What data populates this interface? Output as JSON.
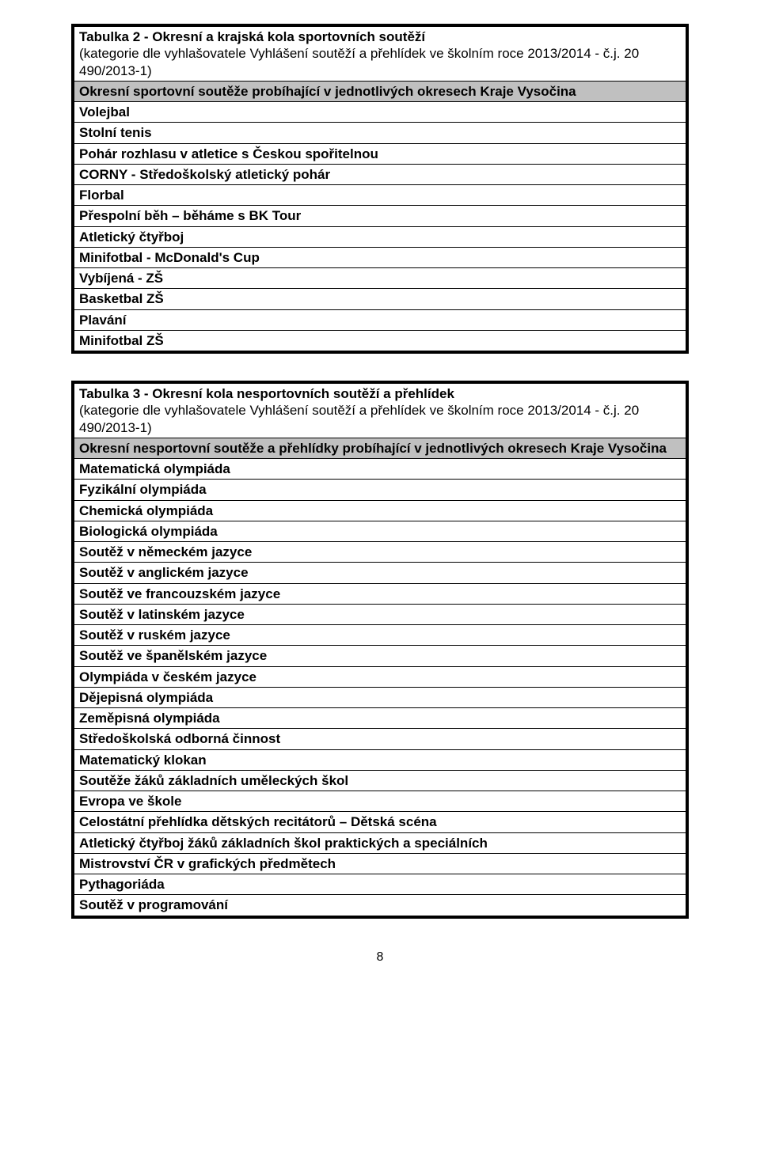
{
  "table2": {
    "title": "Tabulka 2 - Okresní a krajská kola sportovních soutěží",
    "subtitle": "(kategorie dle vyhlašovatele Vyhlášení soutěží a přehlídek ve školním roce 2013/2014 - č.j. 20 490/2013-1)",
    "header": "Okresní sportovní soutěže probíhající v jednotlivých okresech Kraje Vysočina",
    "rows": [
      "Volejbal",
      "Stolní tenis",
      "Pohár rozhlasu v atletice s Českou spořitelnou",
      "CORNY - Středoškolský atletický pohár",
      "Florbal",
      "Přespolní běh – běháme s BK Tour",
      "Atletický čtyřboj",
      "Minifotbal - McDonald's Cup",
      "Vybíjená - ZŠ",
      "Basketbal ZŠ",
      "Plavání",
      "Minifotbal ZŠ"
    ]
  },
  "table3": {
    "title": "Tabulka 3 - Okresní kola nesportovních soutěží a přehlídek",
    "subtitle": "(kategorie dle vyhlašovatele Vyhlášení soutěží a přehlídek ve školním roce 2013/2014 - č.j. 20 490/2013-1)",
    "header": "Okresní nesportovní soutěže a přehlídky probíhající v jednotlivých okresech Kraje Vysočina",
    "rows": [
      "Matematická olympiáda",
      "Fyzikální olympiáda",
      "Chemická olympiáda",
      "Biologická olympiáda",
      "Soutěž v německém jazyce",
      "Soutěž v anglickém jazyce",
      "Soutěž ve francouzském jazyce",
      "Soutěž v latinském jazyce",
      "Soutěž v ruském jazyce",
      "Soutěž ve španělském jazyce",
      "Olympiáda v českém jazyce",
      "Dějepisná olympiáda",
      "Zeměpisná olympiáda",
      "Středoškolská odborná činnost",
      "Matematický klokan",
      "Soutěže žáků základních uměleckých škol",
      "Evropa ve škole",
      "Celostátní přehlídka dětských recitátorů – Dětská scéna",
      "Atletický čtyřboj žáků základních škol praktických a speciálních",
      "Mistrovství ČR v grafických předmětech",
      "Pythagoriáda",
      "Soutěž v programování"
    ]
  },
  "page_number": "8"
}
